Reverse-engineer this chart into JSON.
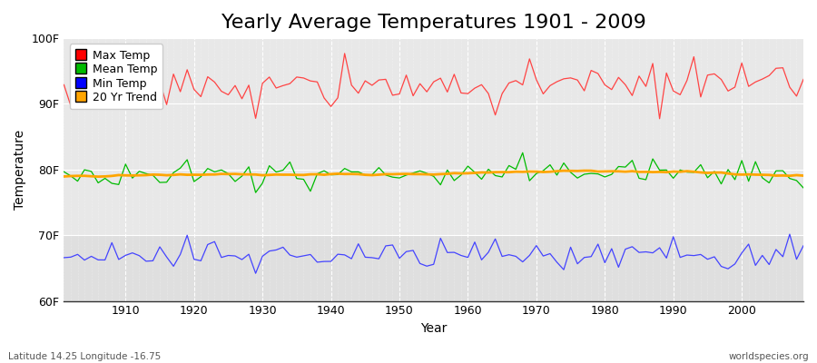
{
  "title": "Yearly Average Temperatures 1901 - 2009",
  "xlabel": "Year",
  "ylabel": "Temperature",
  "ylim": [
    60,
    100
  ],
  "yticks": [
    60,
    70,
    80,
    90,
    100
  ],
  "ytick_labels": [
    "60F",
    "70F",
    "80F",
    "90F",
    "100F"
  ],
  "xlim": [
    1901,
    2009
  ],
  "xticks": [
    1910,
    1920,
    1930,
    1940,
    1950,
    1960,
    1970,
    1980,
    1990,
    2000
  ],
  "legend_labels": [
    "Max Temp",
    "Mean Temp",
    "Min Temp",
    "20 Yr Trend"
  ],
  "legend_colors": [
    "#ff0000",
    "#00bb00",
    "#0000ff",
    "#ffa500"
  ],
  "line_colors": {
    "max": "#ff4444",
    "mean": "#00bb00",
    "min": "#4444ff",
    "trend": "#ffa500"
  },
  "background_color": "#ffffff",
  "plot_bg_color": "#e8e8e8",
  "plot_bg_color_dark": "#d8d8d8",
  "grid_color": "#ffffff",
  "title_fontsize": 16,
  "axis_label_fontsize": 10,
  "tick_fontsize": 9,
  "footer_left": "Latitude 14.25 Longitude -16.75",
  "footer_right": "worldspecies.org"
}
